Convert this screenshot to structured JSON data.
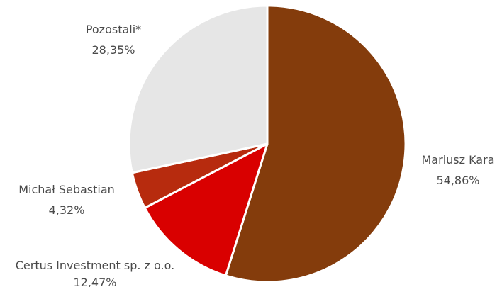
{
  "chart_data": {
    "type": "pie",
    "title": "",
    "start_angle_deg": 0,
    "direction": "clockwise",
    "slices": [
      {
        "label": "Mariusz Kara",
        "value": 54.86,
        "display_value": "54,86%",
        "color": "#843C0C"
      },
      {
        "label": "Certus Investment sp. z o.o.",
        "value": 12.47,
        "display_value": "12,47%",
        "color": "#D90000"
      },
      {
        "label": "Michał Sebastian",
        "value": 4.32,
        "display_value": "4,32%",
        "color": "#B72B0E"
      },
      {
        "label": "Pozostali*",
        "value": 28.35,
        "display_value": "28,35%",
        "color": "#E6E6E6"
      }
    ]
  }
}
